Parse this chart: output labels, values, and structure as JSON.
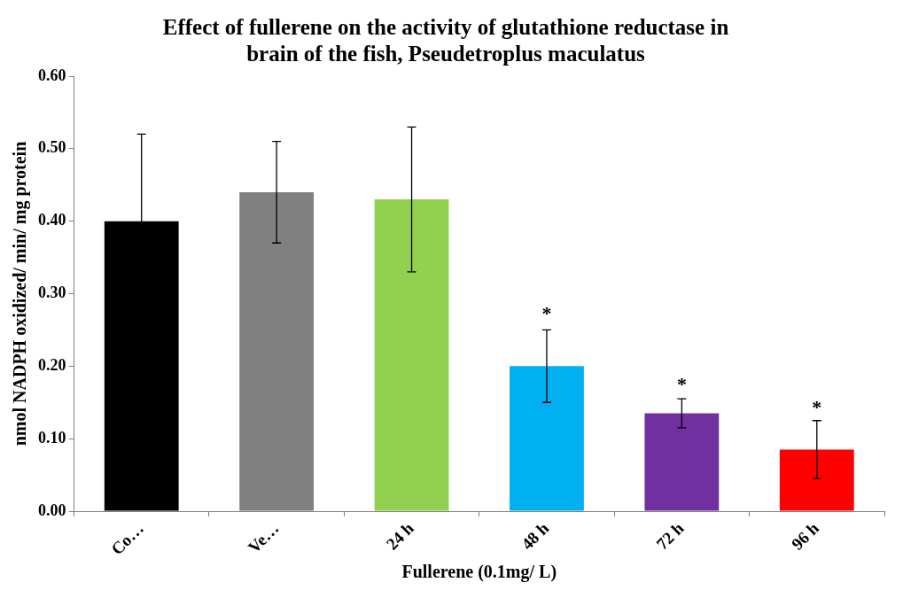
{
  "chart_data": {
    "type": "bar",
    "title": [
      "Effect of fullerene on the activity of glutathione reductase in",
      "brain of the fish, Pseudetroplus maculatus"
    ],
    "xlabel": "Fullerene (0.1mg/ L)",
    "ylabel": "nmol NADPH oxidized/ min/ mg protein",
    "categories": [
      "Co…",
      "Ve…",
      "24 h",
      "48 h",
      "72 h",
      "96 h"
    ],
    "values": [
      0.4,
      0.44,
      0.43,
      0.2,
      0.135,
      0.085
    ],
    "colors": [
      "#000000",
      "#808080",
      "#92d050",
      "#00b0f0",
      "#7030a0",
      "#ff0000"
    ],
    "errors": [
      0.12,
      0.07,
      0.1,
      0.05,
      0.02,
      0.04
    ],
    "ylim": [
      0,
      0.6
    ],
    "yticks": [
      {
        "value": 0,
        "label": "0.00"
      },
      {
        "value": 0.1,
        "label": "0.10"
      },
      {
        "value": 0.2,
        "label": "0.20"
      },
      {
        "value": 0.3,
        "label": "0.30"
      },
      {
        "value": 0.4,
        "label": "0.40"
      },
      {
        "value": 0.5,
        "label": "0.50"
      },
      {
        "value": 0.6,
        "label": "0.60"
      }
    ],
    "annotations": [
      {
        "text": "*",
        "x": "48 h",
        "y": 0.254
      },
      {
        "text": "*",
        "x": "72 h",
        "y": 0.156
      },
      {
        "text": "*",
        "x": "96 h",
        "y": 0.124
      }
    ],
    "grid": false,
    "legend": false
  }
}
